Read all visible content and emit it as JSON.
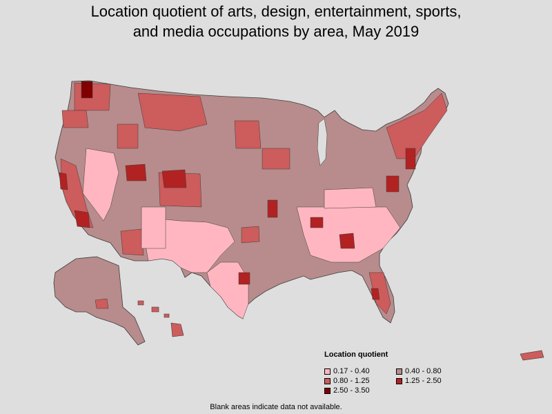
{
  "title_line1": "Location quotient of arts, design, entertainment, sports,",
  "title_line2": "and media occupations by area, May 2019",
  "legend": {
    "title": "Location quotient",
    "items": [
      {
        "label": "0.17 - 0.40",
        "color": "#ffb6c1"
      },
      {
        "label": "0.40 - 0.80",
        "color": "#b88c8c"
      },
      {
        "label": "0.80 - 1.25",
        "color": "#cd5c5c"
      },
      {
        "label": "1.25 - 2.50",
        "color": "#b22222"
      },
      {
        "label": "2.50 - 3.50",
        "color": "#800000"
      }
    ]
  },
  "footnote": "Blank areas indicate data not available.",
  "colors": {
    "background": "#dedede",
    "border": "#3a3a3a"
  }
}
